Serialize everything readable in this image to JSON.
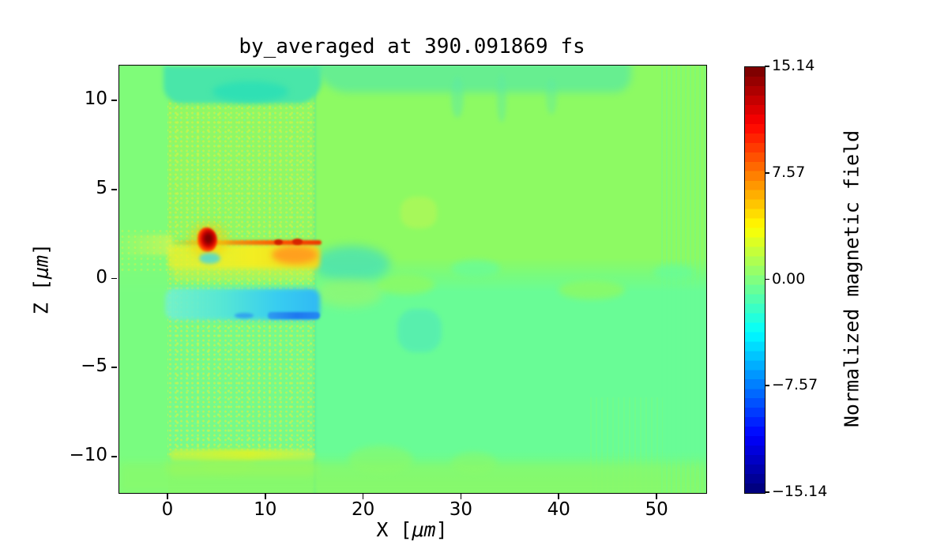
{
  "figure": {
    "title": "by_averaged at 390.091869 fs",
    "xlabel_prefix": "X [",
    "xlabel_unit": "μm",
    "xlabel_suffix": "]",
    "ylabel_prefix": "Z [",
    "ylabel_unit": "μm",
    "ylabel_suffix": "]",
    "colorbar_label": "Normalized magnetic field"
  },
  "chart_data": {
    "type": "heatmap",
    "title": "by_averaged at 390.091869 fs",
    "xlabel": "X [μm]",
    "ylabel": "Z [μm]",
    "colorbar_label": "Normalized magnetic field",
    "colormap": "jet",
    "color_limits": [
      -15.14,
      15.14
    ],
    "x_range_um": [
      -5,
      55
    ],
    "z_range_um": [
      -12,
      12
    ],
    "x_ticks": [
      0,
      10,
      20,
      30,
      40,
      50
    ],
    "x_tick_labels": [
      "0",
      "10",
      "20",
      "30",
      "40",
      "50"
    ],
    "z_ticks": [
      10,
      5,
      0,
      -5,
      -10
    ],
    "z_tick_labels": [
      "10",
      "5",
      "0",
      "−5",
      "−10"
    ],
    "colorbar_ticks": [
      15.14,
      7.57,
      0,
      -7.57,
      -15.14
    ],
    "colorbar_tick_labels": [
      "15.14",
      "7.57",
      "0.00",
      "−7.57",
      "−15.14"
    ],
    "colorbar_levels": 45,
    "grid": false,
    "legend": "colorbar-right",
    "background_value": 0,
    "features": [
      {
        "name": "target-block",
        "desc": "speckled target slab, field ~0 with noise",
        "x_um": [
          0,
          15
        ],
        "z_um": [
          -10,
          10
        ]
      },
      {
        "name": "positive-hotspot",
        "desc": "intense red spot, value ~+15",
        "x_um": 4,
        "z_um": 2.3
      },
      {
        "name": "positive-band",
        "desc": "yellow/orange band ~+4 to +8, strongest near x=13",
        "x_um": [
          0,
          15.5
        ],
        "z_um": [
          0.5,
          2.1
        ]
      },
      {
        "name": "positive-edge-streak",
        "desc": "thin red-orange streak ~+10",
        "x_um": [
          0.5,
          15.5
        ],
        "z_um": [
          1.9,
          2.2
        ]
      },
      {
        "name": "negative-band",
        "desc": "cyan band ~-4 to -8, strongest near x=12",
        "x_um": [
          0,
          15.5
        ],
        "z_um": [
          -2.4,
          -0.6
        ]
      },
      {
        "name": "negative-edge-streak",
        "desc": "dark blue streak ~-12",
        "x_um": [
          10,
          15.5
        ],
        "z_um": [
          -2.3,
          -1.9
        ]
      },
      {
        "name": "teal-cap",
        "desc": "weak negative region above block, ~-2",
        "x_um": [
          0,
          27
        ],
        "z_um": [
          9.8,
          12
        ]
      },
      {
        "name": "bottom-edge-band",
        "desc": "weak positive band at block bottom, ~+3",
        "x_um": [
          0.5,
          15
        ],
        "z_um": [
          -10.4,
          -9.7
        ]
      },
      {
        "name": "downstream-upper",
        "desc": "weak positive background, ~+0.5",
        "x_um": [
          15,
          55
        ],
        "z_um": [
          0,
          12
        ]
      },
      {
        "name": "downstream-lower",
        "desc": "weak negative background, ~-0.5",
        "x_um": [
          15,
          55
        ],
        "z_um": [
          -6,
          0
        ]
      }
    ]
  },
  "colors": {
    "page_background": "#ffffff",
    "text": "#000000",
    "upper_green": "#8dfa63",
    "lower_mint": "#69fc96",
    "teal": "#49e6a9",
    "yellow": "#f2ee22",
    "orange": "#ffa01e",
    "red": "#e83c00",
    "dark_red": "#7f0000",
    "cyan": "#38cdf0",
    "blue": "#1e78f0",
    "navy": "#00007f"
  }
}
